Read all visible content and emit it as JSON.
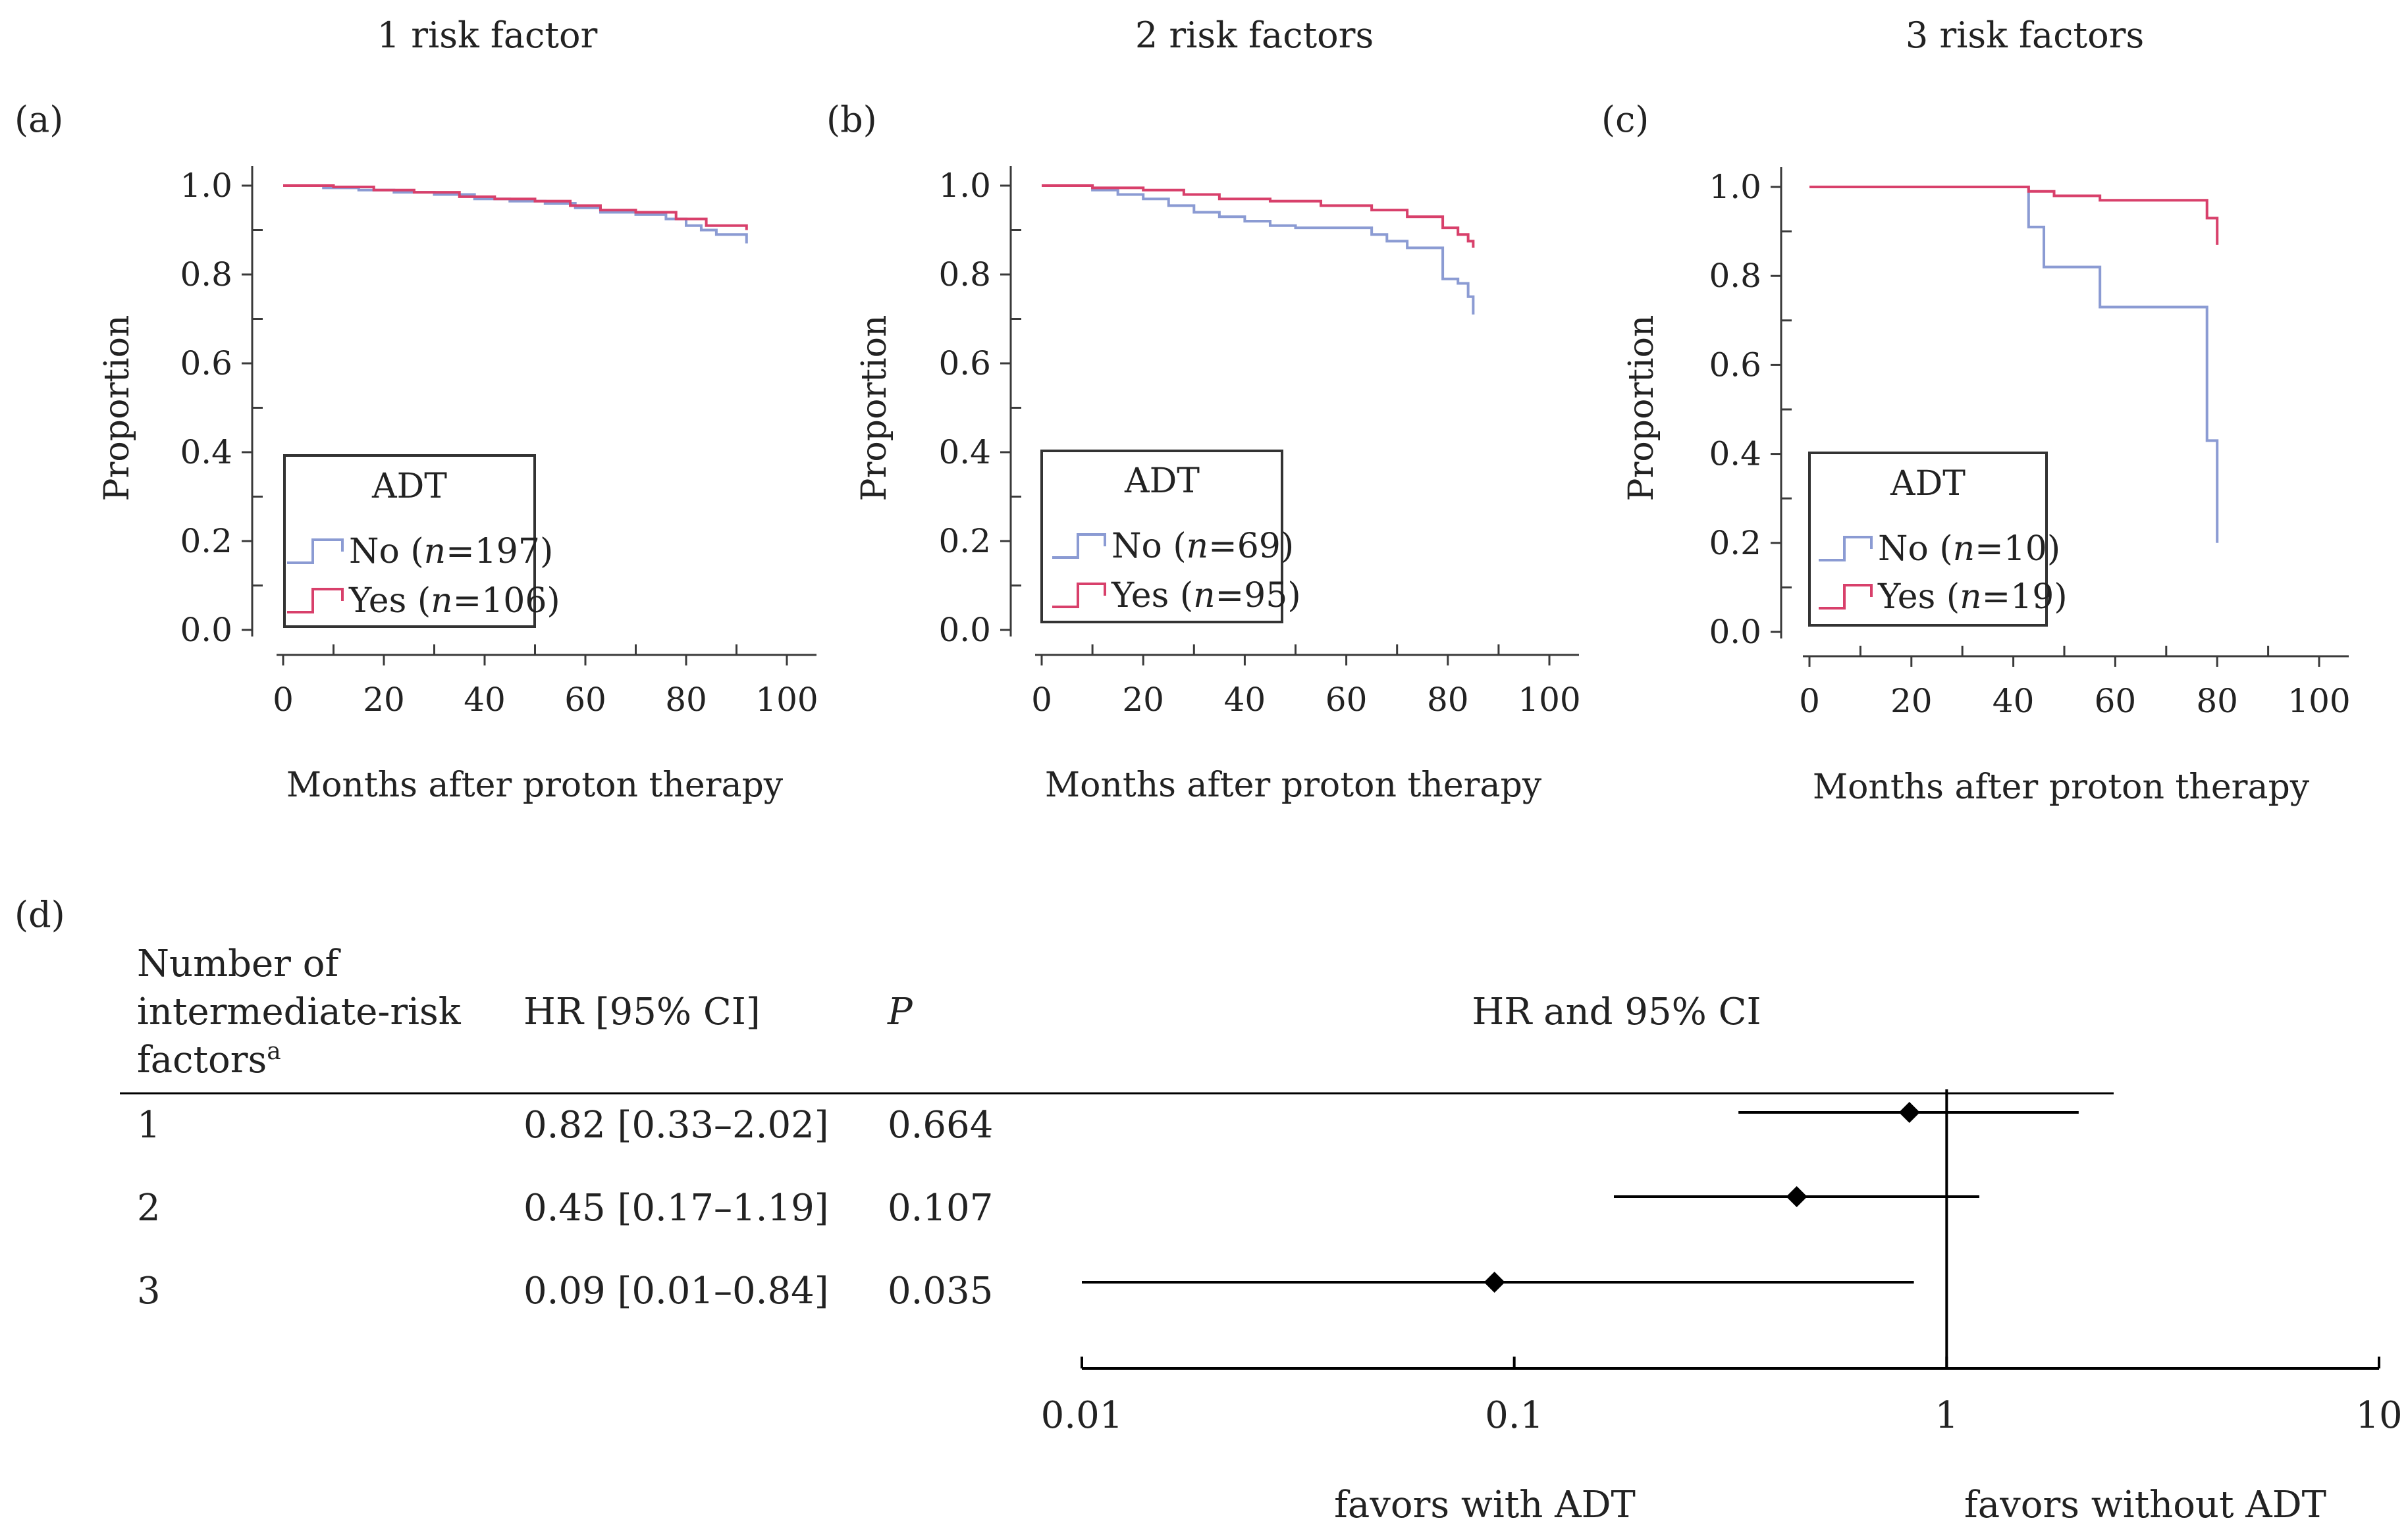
{
  "chart_data": [
    {
      "type": "line",
      "subtype": "kaplan-meier",
      "panel_label": "(a)",
      "title": "1 risk factor",
      "xlabel": "Months after proton therapy",
      "ylabel": "Proportion",
      "xlim": [
        0,
        100
      ],
      "ylim": [
        0.0,
        1.0
      ],
      "x_ticks": [
        "0",
        "20",
        "40",
        "60",
        "80",
        "100"
      ],
      "y_ticks": [
        "0.0",
        "0.2",
        "0.4",
        "0.6",
        "0.8",
        "1.0"
      ],
      "legend": {
        "title": "ADT",
        "entries": [
          {
            "label": "No",
            "n_label": "(",
            "n_italic": "n",
            "n_value": "=197)"
          },
          {
            "label": "Yes",
            "n_label": "(",
            "n_italic": "n",
            "n_value": "=106)"
          }
        ]
      },
      "series": [
        {
          "name": "No",
          "color": "#8b9bd3",
          "x": [
            0,
            8,
            15,
            22,
            30,
            38,
            45,
            52,
            58,
            63,
            70,
            76,
            80,
            83,
            86,
            92
          ],
          "y": [
            1.0,
            0.995,
            0.99,
            0.985,
            0.98,
            0.97,
            0.965,
            0.96,
            0.95,
            0.94,
            0.935,
            0.925,
            0.91,
            0.9,
            0.89,
            0.87
          ]
        },
        {
          "name": "Yes",
          "color": "#d8406b",
          "x": [
            0,
            10,
            18,
            26,
            35,
            42,
            50,
            57,
            63,
            70,
            78,
            84,
            92
          ],
          "y": [
            1.0,
            0.997,
            0.99,
            0.985,
            0.975,
            0.97,
            0.965,
            0.955,
            0.945,
            0.94,
            0.925,
            0.91,
            0.9
          ]
        }
      ]
    },
    {
      "type": "line",
      "subtype": "kaplan-meier",
      "panel_label": "(b)",
      "title": "2 risk factors",
      "xlabel": "Months after proton therapy",
      "ylabel": "Proportion",
      "xlim": [
        0,
        100
      ],
      "ylim": [
        0.0,
        1.0
      ],
      "x_ticks": [
        "0",
        "20",
        "40",
        "60",
        "80",
        "100"
      ],
      "y_ticks": [
        "0.0",
        "0.2",
        "0.4",
        "0.6",
        "0.8",
        "1.0"
      ],
      "legend": {
        "title": "ADT",
        "entries": [
          {
            "label": "No",
            "n_label": "(",
            "n_italic": "n",
            "n_value": "=69)"
          },
          {
            "label": "Yes",
            "n_label": "(",
            "n_italic": "n",
            "n_value": "=95)"
          }
        ]
      },
      "series": [
        {
          "name": "No",
          "color": "#8b9bd3",
          "x": [
            0,
            10,
            15,
            20,
            25,
            30,
            35,
            40,
            45,
            50,
            60,
            65,
            68,
            72,
            79,
            82,
            84,
            85
          ],
          "y": [
            1.0,
            0.99,
            0.98,
            0.97,
            0.955,
            0.94,
            0.93,
            0.92,
            0.91,
            0.905,
            0.905,
            0.89,
            0.875,
            0.86,
            0.79,
            0.78,
            0.75,
            0.71
          ]
        },
        {
          "name": "Yes",
          "color": "#d8406b",
          "x": [
            0,
            10,
            20,
            28,
            35,
            45,
            55,
            65,
            72,
            79,
            82,
            84,
            85
          ],
          "y": [
            1.0,
            0.995,
            0.99,
            0.98,
            0.97,
            0.965,
            0.955,
            0.945,
            0.93,
            0.905,
            0.89,
            0.875,
            0.86
          ]
        }
      ]
    },
    {
      "type": "line",
      "subtype": "kaplan-meier",
      "panel_label": "(c)",
      "title": "3 risk factors",
      "xlabel": "Months after proton therapy",
      "ylabel": "Proportion",
      "xlim": [
        0,
        100
      ],
      "ylim": [
        0.0,
        1.0
      ],
      "x_ticks": [
        "0",
        "20",
        "40",
        "60",
        "80",
        "100"
      ],
      "y_ticks": [
        "0.0",
        "0.2",
        "0.4",
        "0.6",
        "0.8",
        "1.0"
      ],
      "legend": {
        "title": "ADT",
        "entries": [
          {
            "label": "No",
            "n_label": "(",
            "n_italic": "n",
            "n_value": "=10)"
          },
          {
            "label": "Yes",
            "n_label": "(",
            "n_italic": "n",
            "n_value": "=19)"
          }
        ]
      },
      "series": [
        {
          "name": "No",
          "color": "#8b9bd3",
          "x": [
            0,
            43,
            46,
            57,
            78,
            80
          ],
          "y": [
            1.0,
            0.91,
            0.82,
            0.73,
            0.43,
            0.2
          ]
        },
        {
          "name": "Yes",
          "color": "#d8406b",
          "x": [
            0,
            43,
            48,
            57,
            78,
            80
          ],
          "y": [
            1.0,
            0.99,
            0.98,
            0.97,
            0.93,
            0.87
          ]
        }
      ]
    },
    {
      "type": "forest",
      "panel_label": "(d)",
      "xlabel": "HR and 95% CI",
      "scale": "log",
      "xlim": [
        0.01,
        10
      ],
      "reference_line": 1,
      "x_ticks": [
        "0.01",
        "0.1",
        "1",
        "10"
      ],
      "x_tick_values": [
        0.01,
        0.1,
        1,
        10
      ],
      "favors_left": "favors with ADT",
      "favors_right": "favors without ADT",
      "columns": {
        "factors_line1": "Number of",
        "factors_line2": "intermediate-risk",
        "factors_line3": "factors",
        "factors_superscript": "a",
        "hr": "HR [95% CI]",
        "p": "P"
      },
      "rows": [
        {
          "factors": "1",
          "hr_text": "0.82 [0.33–2.02]",
          "p_text": "0.664",
          "hr": 0.82,
          "lo": 0.33,
          "hi": 2.02
        },
        {
          "factors": "2",
          "hr_text": "0.45 [0.17–1.19]",
          "p_text": "0.107",
          "hr": 0.45,
          "lo": 0.17,
          "hi": 1.19
        },
        {
          "factors": "3",
          "hr_text": "0.09 [0.01–0.84]",
          "p_text": "0.035",
          "hr": 0.09,
          "lo": 0.01,
          "hi": 0.84
        }
      ]
    }
  ]
}
